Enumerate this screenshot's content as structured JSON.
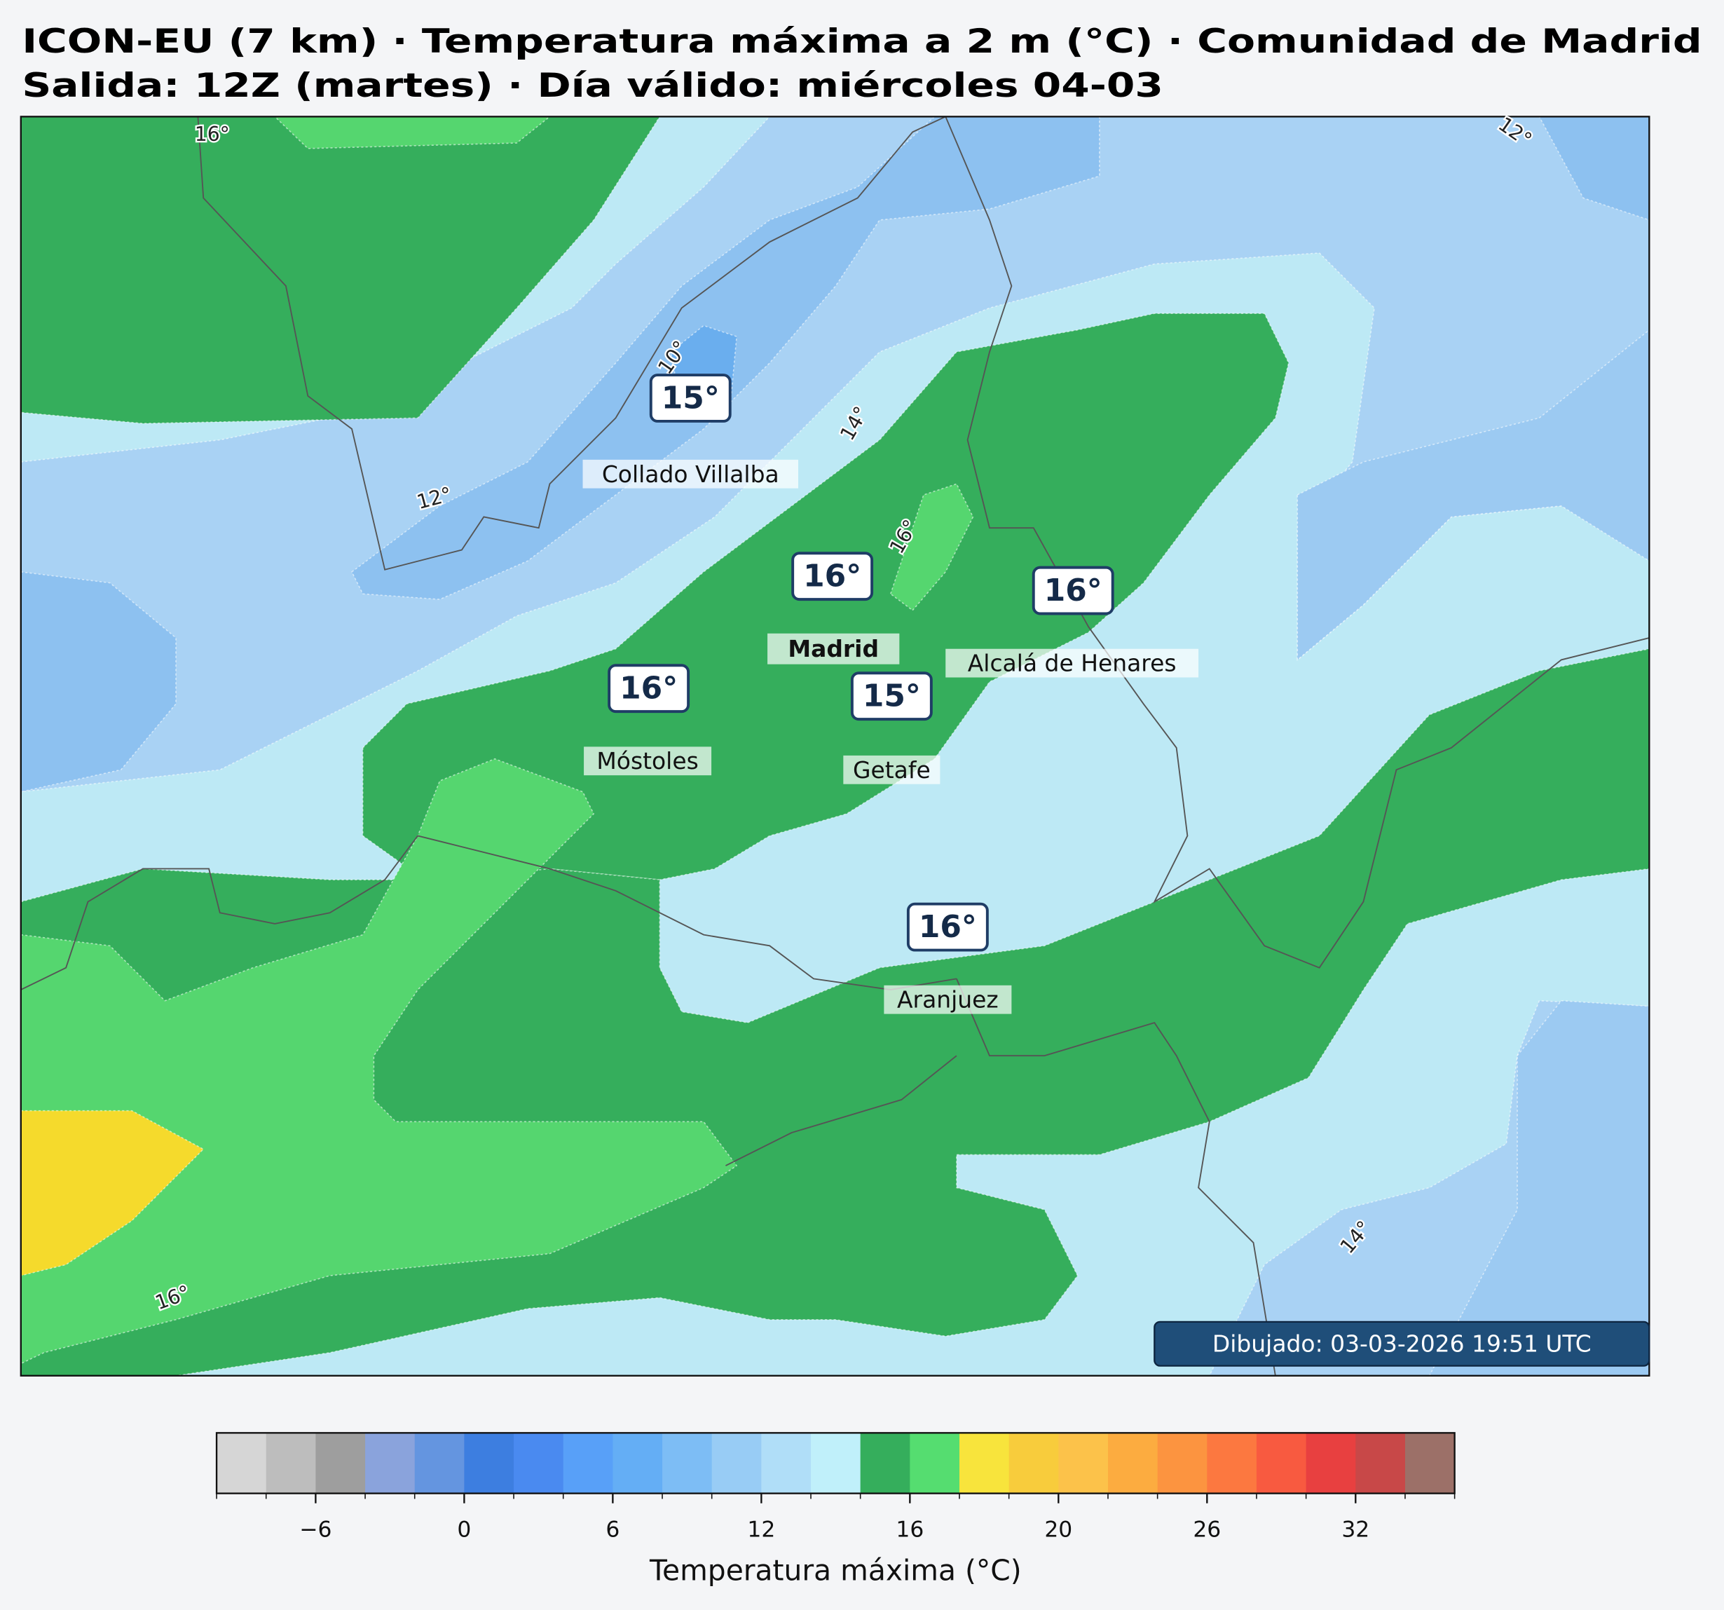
{
  "header": {
    "title": "ICON-EU (7 km) · Temperatura máxima a 2 m (°C) · Comunidad de Madrid",
    "subtitle": "Salida: 12Z (martes) · Día válido: miércoles 04-03"
  },
  "map": {
    "badges": [
      "15°",
      "16°",
      "16°",
      "16°",
      "15°",
      "16°"
    ],
    "cities": [
      "Collado Villalba",
      "Madrid",
      "Alcalá de Henares",
      "Móstoles",
      "Getafe",
      "Aranjuez"
    ],
    "contour_labels": [
      "16°",
      "12°",
      "10°",
      "14°",
      "12°",
      "16°",
      "14°",
      "16°"
    ],
    "stamp": "Dibujado: 03-03-2026 19:51 UTC"
  },
  "colorbar": {
    "label": "Temperatura máxima (°C)",
    "levels": [
      -10,
      -8,
      -6,
      -4,
      -2,
      0,
      2,
      4,
      6,
      8,
      10,
      12,
      14,
      15,
      16,
      17,
      18,
      20,
      22,
      24,
      26,
      28,
      30,
      32,
      34,
      36
    ],
    "colors": [
      "#d6d6d6",
      "#bdbdbd",
      "#9e9e9e",
      "#8aa3dc",
      "#6495e0",
      "#3d7ee0",
      "#4a8af0",
      "#58a0f8",
      "#64aef5",
      "#7dbdf5",
      "#98ccf5",
      "#b0def8",
      "#c0f0fa",
      "#35ae5c",
      "#55dd70",
      "#f8e43c",
      "#f8cc3c",
      "#fcc24a",
      "#fcac40",
      "#fc9440",
      "#fc7840",
      "#f85a40",
      "#e84040",
      "#c84848",
      "#9c7068"
    ],
    "ticks": [
      {
        "value": -6,
        "label": "−6"
      },
      0,
      6,
      12,
      16,
      20,
      26,
      32
    ]
  }
}
